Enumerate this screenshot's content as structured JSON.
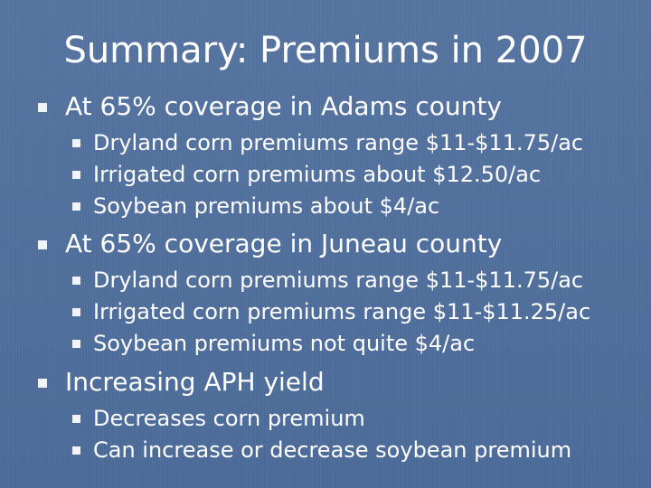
{
  "slide": {
    "title": "Summary: Premiums in 2007",
    "sections": [
      {
        "heading": "At 65% coverage in Adams county",
        "items": [
          "Dryland corn premiums range $11-$11.75/ac",
          "Irrigated corn premiums about $12.50/ac",
          "Soybean premiums about $4/ac"
        ]
      },
      {
        "heading": "At 65% coverage in Juneau county",
        "items": [
          "Dryland corn premiums range $11-$11.75/ac",
          "Irrigated corn premiums range $11-$11.25/ac",
          "Soybean premiums not quite $4/ac"
        ]
      },
      {
        "heading": "Increasing APH yield",
        "items": [
          "Decreases corn premium",
          "Can increase or decrease soybean premium"
        ]
      }
    ]
  }
}
